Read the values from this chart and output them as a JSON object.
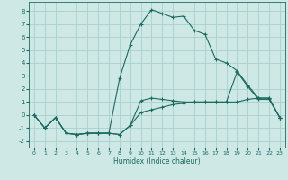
{
  "xlabel": "Humidex (Indice chaleur)",
  "background_color": "#cde8e5",
  "grid_color": "#aacfcc",
  "line_color": "#1a6b60",
  "xlim": [
    -0.5,
    23.5
  ],
  "ylim": [
    -2.5,
    8.7
  ],
  "xticks": [
    0,
    1,
    2,
    3,
    4,
    5,
    6,
    7,
    8,
    9,
    10,
    11,
    12,
    13,
    14,
    15,
    16,
    17,
    18,
    19,
    20,
    21,
    22,
    23
  ],
  "yticks": [
    -2,
    -1,
    0,
    1,
    2,
    3,
    4,
    5,
    6,
    7,
    8
  ],
  "series2_x": [
    0,
    1,
    2,
    3,
    4,
    5,
    6,
    7,
    8,
    9,
    10,
    11,
    12,
    13,
    14,
    15,
    16,
    17,
    18,
    19,
    20,
    21,
    22,
    23
  ],
  "series2_y": [
    0.0,
    -1.0,
    -0.2,
    -1.4,
    -1.5,
    -1.4,
    -1.4,
    -1.4,
    2.8,
    5.4,
    7.0,
    8.1,
    7.8,
    7.5,
    7.6,
    6.5,
    6.2,
    4.3,
    4.0,
    3.4,
    2.3,
    1.3,
    1.3,
    -0.2
  ],
  "series1_x": [
    0,
    1,
    2,
    3,
    4,
    5,
    6,
    7,
    8,
    9,
    10,
    11,
    12,
    13,
    14,
    15,
    16,
    17,
    18,
    19,
    20,
    21,
    22,
    23
  ],
  "series1_y": [
    0.0,
    -1.0,
    -0.2,
    -1.4,
    -1.5,
    -1.4,
    -1.4,
    -1.4,
    -1.5,
    -0.8,
    1.1,
    1.3,
    1.2,
    1.1,
    1.0,
    1.0,
    1.0,
    1.0,
    1.0,
    3.3,
    2.2,
    1.2,
    1.2,
    -0.2
  ],
  "series3_x": [
    0,
    1,
    2,
    3,
    4,
    5,
    6,
    7,
    8,
    9,
    10,
    11,
    12,
    13,
    14,
    15,
    16,
    17,
    18,
    19,
    20,
    21,
    22,
    23
  ],
  "series3_y": [
    0.0,
    -1.0,
    -0.2,
    -1.4,
    -1.5,
    -1.4,
    -1.4,
    -1.4,
    -1.5,
    -0.8,
    0.2,
    0.4,
    0.6,
    0.8,
    0.9,
    1.0,
    1.0,
    1.0,
    1.0,
    1.0,
    1.2,
    1.3,
    1.3,
    -0.2
  ]
}
